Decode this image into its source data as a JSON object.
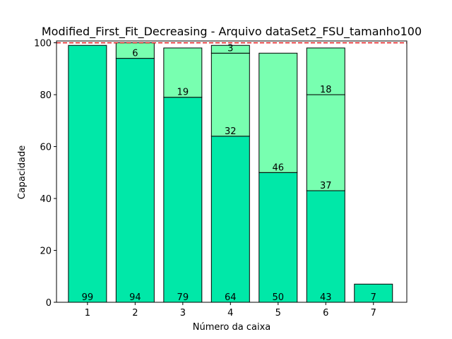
{
  "chart_data": {
    "type": "bar",
    "title": "Modified_First_Fit_Decreasing - Arquivo dataSet2_FSU_tamanho100",
    "xlabel": "Número da caixa",
    "ylabel": "Capacidade",
    "categories": [
      "1",
      "2",
      "3",
      "4",
      "5",
      "6",
      "7"
    ],
    "xlim": [
      0.35,
      7.7
    ],
    "ylim": [
      0,
      100.7
    ],
    "yticks": [
      0,
      20,
      40,
      60,
      80,
      100
    ],
    "capacity_line": 100,
    "grid": false,
    "bins": [
      [
        99
      ],
      [
        94,
        6
      ],
      [
        79,
        19
      ],
      [
        64,
        32,
        3
      ],
      [
        50,
        46
      ],
      [
        43,
        37,
        18
      ],
      [
        7
      ]
    ],
    "colors": [
      "#00e8a8",
      "#78ffb0"
    ],
    "capacity_line_color": "#e31a1c"
  }
}
